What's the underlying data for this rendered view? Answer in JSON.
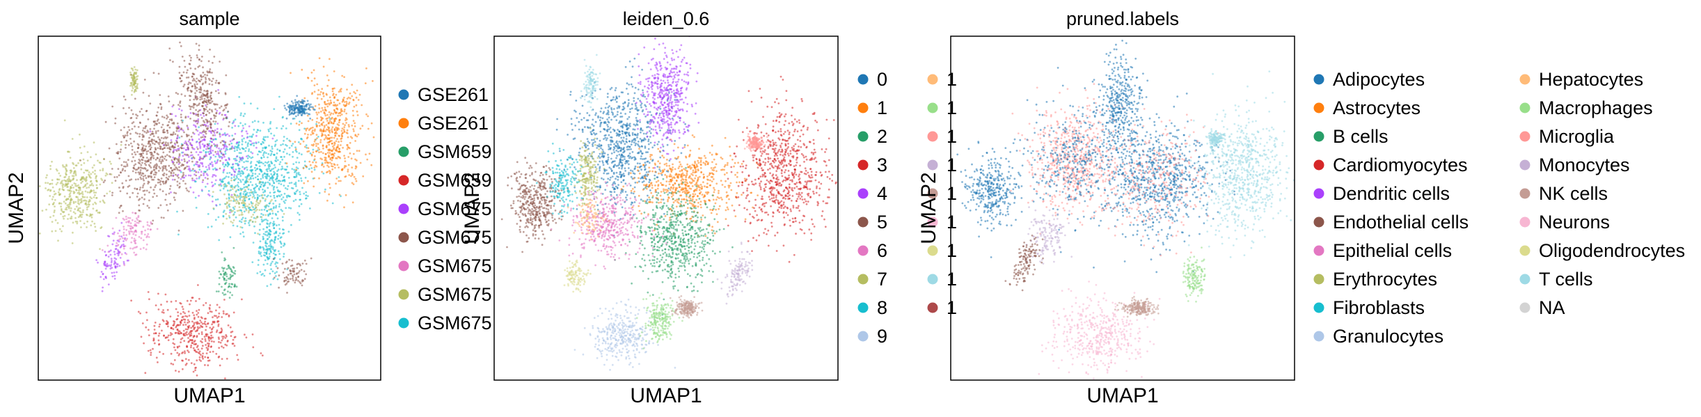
{
  "figure": {
    "type": "umap-scatter-panels"
  },
  "chart_data": [
    {
      "type": "scatter",
      "title": "sample",
      "xlabel": "UMAP1",
      "ylabel": "UMAP2",
      "grid": false,
      "ticks": false,
      "legend": {
        "placement": "right",
        "columns": 1,
        "entries": [
          {
            "label": "GSE261",
            "color": "#1f77b4"
          },
          {
            "label": "GSE261",
            "color": "#ff7f0e"
          },
          {
            "label": "GSM659",
            "color": "#279e68"
          },
          {
            "label": "GSM659",
            "color": "#d62728"
          },
          {
            "label": "GSM675",
            "color": "#aa40fc"
          },
          {
            "label": "GSM675",
            "color": "#8c564b"
          },
          {
            "label": "GSM675",
            "color": "#e377c2"
          },
          {
            "label": "GSM675",
            "color": "#b5bd61"
          },
          {
            "label": "GSM675",
            "color": "#17becf"
          }
        ]
      }
    },
    {
      "type": "scatter",
      "title": "leiden_0.6",
      "xlabel": "UMAP1",
      "ylabel": "UMAP2",
      "grid": false,
      "ticks": false,
      "legend": {
        "placement": "right",
        "columns": 2,
        "entries": [
          {
            "label": "0",
            "color": "#1f77b4"
          },
          {
            "label": "1",
            "color": "#ff7f0e"
          },
          {
            "label": "2",
            "color": "#279e68"
          },
          {
            "label": "3",
            "color": "#d62728"
          },
          {
            "label": "4",
            "color": "#aa40fc"
          },
          {
            "label": "5",
            "color": "#8c564b"
          },
          {
            "label": "6",
            "color": "#e377c2"
          },
          {
            "label": "7",
            "color": "#b5bd61"
          },
          {
            "label": "8",
            "color": "#17becf"
          },
          {
            "label": "9",
            "color": "#aec7e8"
          },
          {
            "label": "1",
            "color": "#ffbb78"
          },
          {
            "label": "1",
            "color": "#98df8a"
          },
          {
            "label": "1",
            "color": "#ff9896"
          },
          {
            "label": "1",
            "color": "#c5b0d5"
          },
          {
            "label": "1",
            "color": "#c49c94"
          },
          {
            "label": "1",
            "color": "#f7b6d2"
          },
          {
            "label": "1",
            "color": "#dbdb8d"
          },
          {
            "label": "1",
            "color": "#9edae5"
          },
          {
            "label": "1",
            "color": "#ad494a"
          }
        ]
      }
    },
    {
      "type": "scatter",
      "title": "pruned.labels",
      "xlabel": "UMAP1",
      "ylabel": "UMAP2",
      "grid": false,
      "ticks": false,
      "legend": {
        "placement": "right",
        "columns": 2,
        "entries": [
          {
            "label": "Adipocytes",
            "color": "#1f77b4"
          },
          {
            "label": "Astrocytes",
            "color": "#ff7f0e"
          },
          {
            "label": "B cells",
            "color": "#279e68"
          },
          {
            "label": "Cardiomyocytes",
            "color": "#d62728"
          },
          {
            "label": "Dendritic cells",
            "color": "#aa40fc"
          },
          {
            "label": "Endothelial cells",
            "color": "#8c564b"
          },
          {
            "label": "Epithelial cells",
            "color": "#e377c2"
          },
          {
            "label": "Erythrocytes",
            "color": "#b5bd61"
          },
          {
            "label": "Fibroblasts",
            "color": "#17becf"
          },
          {
            "label": "Granulocytes",
            "color": "#aec7e8"
          },
          {
            "label": "Hepatocytes",
            "color": "#ffbb78"
          },
          {
            "label": "Macrophages",
            "color": "#98df8a"
          },
          {
            "label": "Microglia",
            "color": "#ff9896"
          },
          {
            "label": "Monocytes",
            "color": "#c5b0d5"
          },
          {
            "label": "NK cells",
            "color": "#c49c94"
          },
          {
            "label": "Neurons",
            "color": "#f7b6d2"
          },
          {
            "label": "Oligodendrocytes",
            "color": "#dbdb8d"
          },
          {
            "label": "T cells",
            "color": "#9edae5"
          },
          {
            "label": "NA",
            "color": "#d3d3d3"
          }
        ]
      }
    }
  ]
}
